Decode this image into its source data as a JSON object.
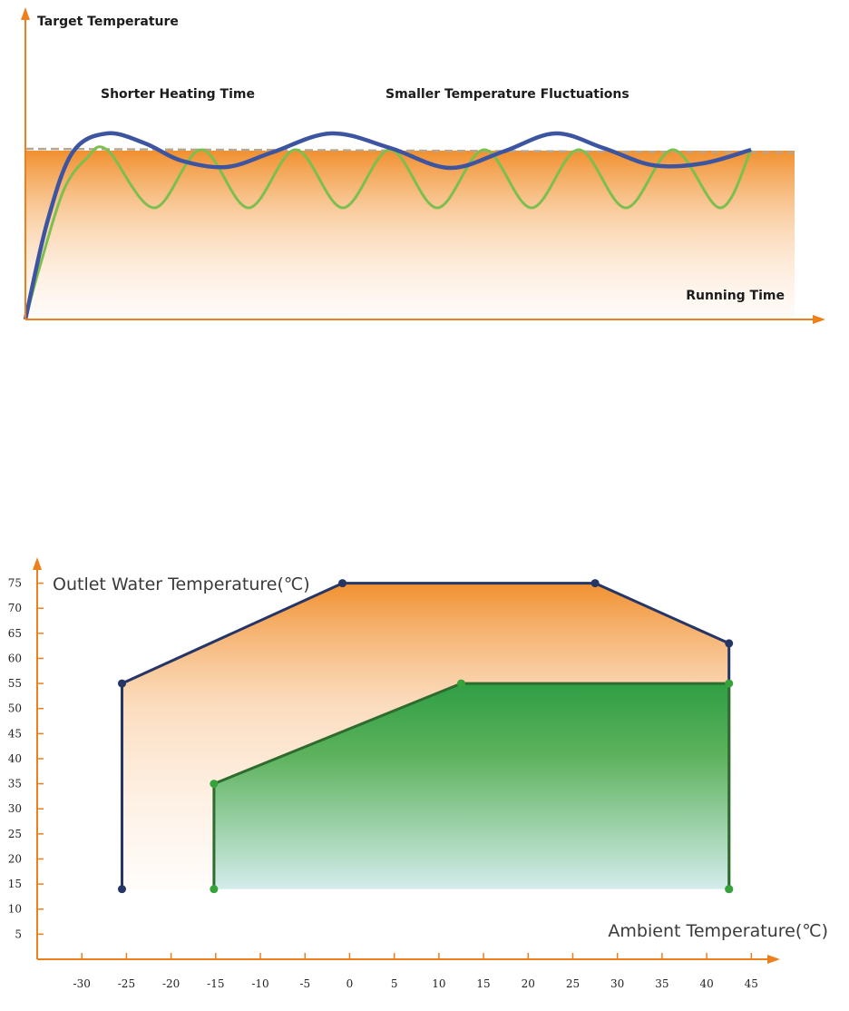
{
  "colors": {
    "axis": "#ee7f1d",
    "orange": "#f08a24",
    "blue_line": "#3d55a0",
    "green_line": "#7dbf4e",
    "dashed_target": "#c0a080",
    "envelope_outline": "#253566",
    "green_area": "#2f9e44",
    "green_area_bottom": "#d4ecec",
    "green_outline": "#2f6b2e",
    "green_point": "#36a33a"
  },
  "chart_data": [
    {
      "type": "line",
      "labels": {
        "y_axis": "Target Temperature",
        "x_axis": "Running Time",
        "annotation_left": "Shorter Heating Time",
        "annotation_right": "Smaller Temperature Fluctuations"
      },
      "series": [],
      "grid": false
    },
    {
      "type": "area",
      "xlabel": "Ambient Temperature(℃)",
      "ylabel": "Outlet Water Temperature(℃)",
      "xlim": [
        -35,
        47
      ],
      "ylim": [
        0,
        78
      ],
      "x_ticks": [
        -30,
        -25,
        -20,
        -15,
        -10,
        -5,
        0,
        5,
        10,
        15,
        20,
        25,
        30,
        35,
        40,
        45
      ],
      "y_ticks": [
        5,
        10,
        15,
        20,
        25,
        30,
        35,
        40,
        45,
        50,
        55,
        60,
        65,
        70,
        75
      ],
      "series": [
        {
          "points": [
            [
              -25.5,
              14
            ],
            [
              -25.5,
              55
            ],
            [
              -0.8,
              75
            ],
            [
              27.5,
              75
            ],
            [
              42.5,
              63
            ],
            [
              42.5,
              14
            ]
          ]
        },
        {
          "points": [
            [
              -15.2,
              14
            ],
            [
              -15.2,
              35
            ],
            [
              12.5,
              55
            ],
            [
              42.5,
              55
            ],
            [
              42.5,
              14
            ]
          ]
        }
      ],
      "grid": false
    }
  ]
}
